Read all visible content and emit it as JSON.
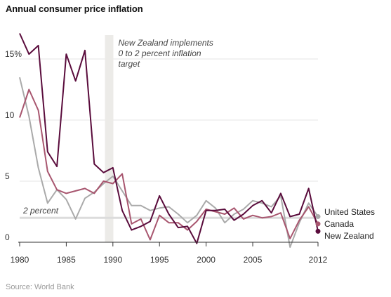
{
  "chart_data": {
    "type": "line",
    "title": "Annual consumer price inflation",
    "source": "Source: World Bank",
    "ylim": [
      0,
      17.3
    ],
    "xlim": [
      1980,
      2012
    ],
    "y_ticks": [
      0,
      5,
      10,
      15
    ],
    "y_tick_labels": [
      "0",
      "5",
      "10",
      "15%"
    ],
    "x_ticks": [
      1980,
      1985,
      1990,
      1995,
      2000,
      2005,
      2012
    ],
    "x_tick_labels": [
      "1980",
      "1985",
      "1990",
      "1995",
      "2000",
      "2005",
      "2012"
    ],
    "grid": true,
    "reference_line": {
      "label": "2 percent",
      "value": 2
    },
    "event": {
      "year": 1989.6,
      "label_lines": [
        "New Zealand implements",
        "0 to 2 percent inflation",
        "target"
      ]
    },
    "x": [
      1980,
      1981,
      1982,
      1983,
      1984,
      1985,
      1986,
      1987,
      1988,
      1989,
      1990,
      1991,
      1992,
      1993,
      1994,
      1995,
      1996,
      1997,
      1998,
      1999,
      2000,
      2001,
      2002,
      2003,
      2004,
      2005,
      2006,
      2007,
      2008,
      2009,
      2010,
      2011,
      2012
    ],
    "series": [
      {
        "name": "United States",
        "color": "#aaaaaa",
        "values": [
          13.5,
          10.3,
          6.1,
          3.2,
          4.3,
          3.5,
          1.9,
          3.6,
          4.1,
          4.8,
          5.4,
          4.2,
          3.0,
          3.0,
          2.6,
          2.8,
          2.9,
          2.3,
          1.6,
          2.2,
          3.4,
          2.8,
          1.6,
          2.3,
          2.7,
          3.4,
          3.2,
          2.9,
          3.8,
          -0.4,
          1.6,
          3.2,
          2.1
        ]
      },
      {
        "name": "Canada",
        "color": "#a8566f",
        "values": [
          10.2,
          12.5,
          10.8,
          5.8,
          4.3,
          4.0,
          4.2,
          4.4,
          4.0,
          5.0,
          4.8,
          5.6,
          1.5,
          1.9,
          0.2,
          2.2,
          1.6,
          1.6,
          1.0,
          1.7,
          2.7,
          2.5,
          2.3,
          2.8,
          1.9,
          2.2,
          2.0,
          2.1,
          2.4,
          0.3,
          1.8,
          2.9,
          1.5
        ]
      },
      {
        "name": "New Zealand",
        "color": "#5a0c3c",
        "values": [
          17.1,
          15.4,
          16.1,
          7.4,
          6.2,
          15.4,
          13.2,
          15.7,
          6.4,
          5.7,
          6.1,
          2.6,
          1.0,
          1.3,
          1.7,
          3.8,
          2.3,
          1.2,
          1.3,
          -0.1,
          2.6,
          2.6,
          2.7,
          1.8,
          2.3,
          3.0,
          3.4,
          2.4,
          4.0,
          2.1,
          2.3,
          4.4,
          0.9
        ]
      }
    ]
  }
}
